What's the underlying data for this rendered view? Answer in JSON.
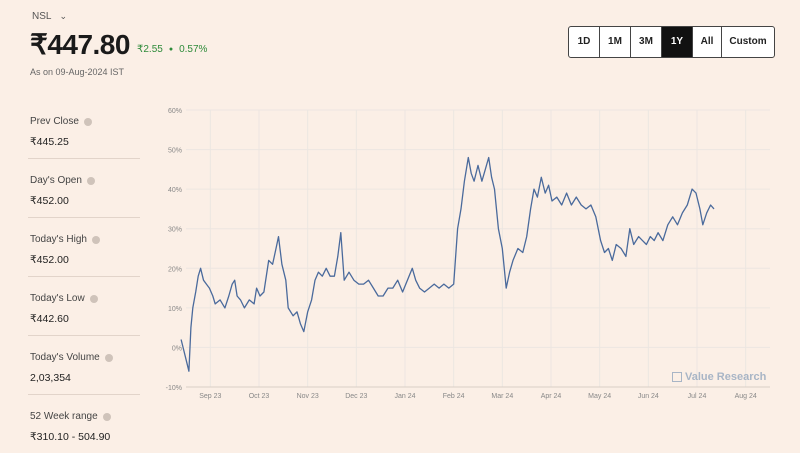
{
  "header": {
    "ticker": "NSL",
    "price": "₹447.80",
    "change_abs": "₹2.55",
    "change_pct": "0.57%",
    "as_of": "As on 09-Aug-2024 IST"
  },
  "ranges": [
    {
      "label": "1D",
      "active": false
    },
    {
      "label": "1M",
      "active": false
    },
    {
      "label": "3M",
      "active": false
    },
    {
      "label": "1Y",
      "active": true
    },
    {
      "label": "All",
      "active": false
    },
    {
      "label": "Custom",
      "active": false
    }
  ],
  "stats": [
    {
      "label": "Prev Close",
      "value": "₹445.25"
    },
    {
      "label": "Day's Open",
      "value": "₹452.00"
    },
    {
      "label": "Today's High",
      "value": "₹452.00"
    },
    {
      "label": "Today's Low",
      "value": "₹442.60"
    },
    {
      "label": "Today's Volume",
      "value": "2,03,354"
    },
    {
      "label": "52 Week range",
      "value": "₹310.10 - 504.90"
    }
  ],
  "watermark": "Value Research",
  "colors": {
    "line": "#4a6a9c",
    "positive": "#2e8b3a",
    "grid": "#ece6e1"
  },
  "chart_data": {
    "type": "line",
    "title": "",
    "xlabel": "",
    "ylabel": "",
    "y_unit": "%",
    "ylim": [
      -10,
      60
    ],
    "y_ticks": [
      "-10%",
      "0%",
      "10%",
      "20%",
      "30%",
      "40%",
      "50%",
      "60%"
    ],
    "y_tick_values": [
      -10,
      0,
      10,
      20,
      30,
      40,
      50,
      60
    ],
    "x_ticks": [
      "Sep 23",
      "Oct 23",
      "Nov 23",
      "Dec 23",
      "Jan 24",
      "Feb 24",
      "Mar 24",
      "Apr 24",
      "May 24",
      "Jun 24",
      "Jul 24",
      "Aug 24"
    ],
    "x_range": [
      0,
      12
    ],
    "grid": true,
    "series": [
      {
        "points": [
          [
            -0.1,
            2
          ],
          [
            0.0,
            -3
          ],
          [
            0.06,
            -6
          ],
          [
            0.1,
            5
          ],
          [
            0.14,
            10
          ],
          [
            0.2,
            14
          ],
          [
            0.25,
            18
          ],
          [
            0.3,
            20
          ],
          [
            0.36,
            17
          ],
          [
            0.42,
            16
          ],
          [
            0.48,
            15
          ],
          [
            0.55,
            13
          ],
          [
            0.6,
            11
          ],
          [
            0.7,
            12
          ],
          [
            0.8,
            10
          ],
          [
            0.88,
            13
          ],
          [
            0.95,
            16
          ],
          [
            1.0,
            17
          ],
          [
            1.05,
            13
          ],
          [
            1.12,
            12
          ],
          [
            1.2,
            10
          ],
          [
            1.3,
            12
          ],
          [
            1.4,
            11
          ],
          [
            1.45,
            15
          ],
          [
            1.52,
            13
          ],
          [
            1.6,
            14
          ],
          [
            1.7,
            22
          ],
          [
            1.78,
            21
          ],
          [
            1.85,
            25
          ],
          [
            1.9,
            28
          ],
          [
            1.97,
            21
          ],
          [
            2.05,
            17
          ],
          [
            2.1,
            10
          ],
          [
            2.2,
            8
          ],
          [
            2.28,
            9
          ],
          [
            2.35,
            6
          ],
          [
            2.42,
            4
          ],
          [
            2.5,
            9
          ],
          [
            2.58,
            12
          ],
          [
            2.65,
            17
          ],
          [
            2.72,
            19
          ],
          [
            2.8,
            18
          ],
          [
            2.88,
            20
          ],
          [
            2.96,
            18
          ],
          [
            3.05,
            18
          ],
          [
            3.12,
            23
          ],
          [
            3.18,
            29
          ],
          [
            3.25,
            17
          ],
          [
            3.35,
            19
          ],
          [
            3.45,
            17
          ],
          [
            3.55,
            16
          ],
          [
            3.65,
            16
          ],
          [
            3.75,
            17
          ],
          [
            3.85,
            15
          ],
          [
            3.95,
            13
          ],
          [
            4.05,
            13
          ],
          [
            4.15,
            15
          ],
          [
            4.25,
            15
          ],
          [
            4.35,
            17
          ],
          [
            4.45,
            14
          ],
          [
            4.55,
            17
          ],
          [
            4.65,
            20
          ],
          [
            4.72,
            17
          ],
          [
            4.8,
            15
          ],
          [
            4.9,
            14
          ],
          [
            5.0,
            15
          ],
          [
            5.1,
            16
          ],
          [
            5.2,
            15
          ],
          [
            5.3,
            16
          ],
          [
            5.4,
            15
          ],
          [
            5.5,
            16
          ],
          [
            5.58,
            30
          ],
          [
            5.65,
            35
          ],
          [
            5.72,
            42
          ],
          [
            5.8,
            48
          ],
          [
            5.86,
            44
          ],
          [
            5.92,
            42
          ],
          [
            6.0,
            46
          ],
          [
            6.08,
            42
          ],
          [
            6.15,
            45
          ],
          [
            6.22,
            48
          ],
          [
            6.28,
            43
          ],
          [
            6.34,
            40
          ],
          [
            6.42,
            30
          ],
          [
            6.5,
            25
          ],
          [
            6.58,
            15
          ],
          [
            6.65,
            19
          ],
          [
            6.72,
            22
          ],
          [
            6.82,
            25
          ],
          [
            6.92,
            24
          ],
          [
            7.0,
            28
          ],
          [
            7.08,
            35
          ],
          [
            7.15,
            40
          ],
          [
            7.22,
            38
          ],
          [
            7.3,
            43
          ],
          [
            7.38,
            39
          ],
          [
            7.45,
            41
          ],
          [
            7.52,
            37
          ],
          [
            7.62,
            38
          ],
          [
            7.72,
            36
          ],
          [
            7.82,
            39
          ],
          [
            7.92,
            36
          ],
          [
            8.02,
            38
          ],
          [
            8.12,
            36
          ],
          [
            8.22,
            35
          ],
          [
            8.32,
            36
          ],
          [
            8.42,
            33
          ],
          [
            8.52,
            27
          ],
          [
            8.6,
            24
          ],
          [
            8.68,
            25
          ],
          [
            8.76,
            22
          ],
          [
            8.84,
            26
          ],
          [
            8.94,
            25
          ],
          [
            9.04,
            23
          ],
          [
            9.12,
            30
          ],
          [
            9.2,
            26
          ],
          [
            9.3,
            28
          ],
          [
            9.38,
            27
          ],
          [
            9.46,
            26
          ],
          [
            9.54,
            28
          ],
          [
            9.62,
            27
          ],
          [
            9.7,
            29
          ],
          [
            9.8,
            27
          ],
          [
            9.9,
            31
          ],
          [
            10.0,
            33
          ],
          [
            10.1,
            31
          ],
          [
            10.2,
            34
          ],
          [
            10.3,
            36
          ],
          [
            10.4,
            40
          ],
          [
            10.48,
            39
          ],
          [
            10.56,
            35
          ],
          [
            10.62,
            31
          ],
          [
            10.7,
            34
          ],
          [
            10.78,
            36
          ],
          [
            10.85,
            35
          ]
        ]
      }
    ]
  }
}
